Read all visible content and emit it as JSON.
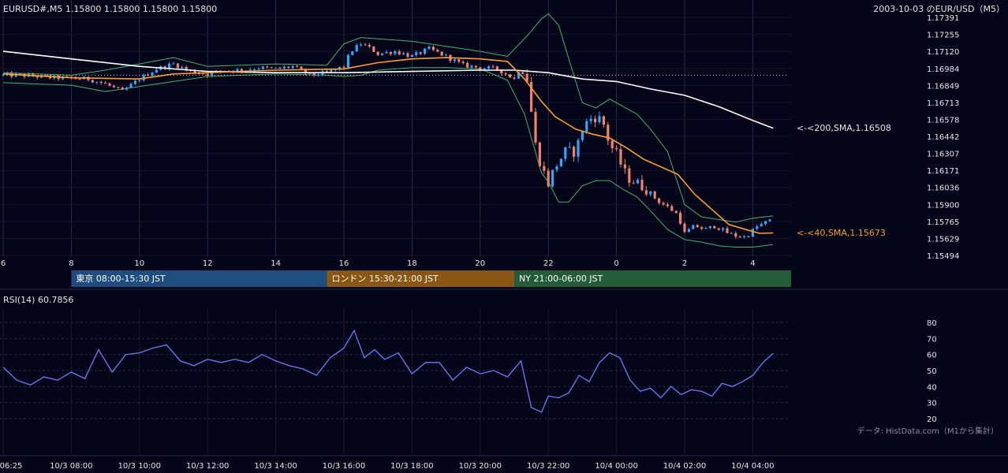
{
  "header": {
    "symbol_quote": "EURUSD#,M5 1.15800 1.15800 1.15800 1.15800",
    "right_title": "2003-10-03 のEUR/USD（M5）"
  },
  "colors": {
    "background": "#05051a",
    "grid": "#1c1c33",
    "up_candle": "#2ea8ff",
    "down_candle": "#f08070",
    "sma200": "#ffffff",
    "sma40": "#ffa020",
    "bollinger": "#3fb56a",
    "rsi": "#6a7cff",
    "tokyo": "#1f4e7e",
    "london": "#8a5614",
    "ny": "#245c3a"
  },
  "chart_data": [
    {
      "type": "candlestick",
      "title": "",
      "y_ticks": [
        "1.17391",
        "1.17255",
        "1.17120",
        "1.16984",
        "1.16849",
        "1.16713",
        "1.16578",
        "1.16442",
        "1.16307",
        "1.16171",
        "1.16036",
        "1.15900",
        "1.15765",
        "1.15629",
        "1.15494"
      ],
      "ylim": [
        1.15494,
        1.17391
      ],
      "x_ticks": [
        "6",
        "8",
        "10",
        "12",
        "14",
        "16",
        "18",
        "20",
        "22",
        "0",
        "2",
        "4"
      ],
      "price_path": {
        "time_hours": [
          6.5,
          7.5,
          8.5,
          9.0,
          9.5,
          10.0,
          10.5,
          11.0,
          11.5,
          12.0,
          12.5,
          13.0,
          13.5,
          14.0,
          14.5,
          15.0,
          15.5,
          16.0,
          16.2,
          16.5,
          16.8,
          17.0,
          17.5,
          18.0,
          18.5,
          19.0,
          19.5,
          20.0,
          20.5,
          21.0,
          21.2,
          21.4,
          21.6,
          21.8,
          22.0,
          22.2,
          22.5,
          22.8,
          23.0,
          23.2,
          23.4,
          23.6,
          23.8,
          24.0,
          24.3,
          24.6,
          24.9,
          25.2,
          25.5,
          25.8,
          26.0,
          26.3,
          26.6,
          26.9,
          27.2,
          27.5,
          27.8,
          28.1,
          28.4,
          28.6
        ],
        "close": [
          1.1693,
          1.1691,
          1.169,
          1.1686,
          1.168,
          1.169,
          1.1698,
          1.1702,
          1.1696,
          1.1694,
          1.1697,
          1.1697,
          1.1699,
          1.1698,
          1.17,
          1.1693,
          1.1695,
          1.17,
          1.1712,
          1.1718,
          1.1714,
          1.171,
          1.1712,
          1.1708,
          1.1714,
          1.1708,
          1.1701,
          1.1699,
          1.1698,
          1.169,
          1.1701,
          1.1688,
          1.164,
          1.162,
          1.1607,
          1.162,
          1.1632,
          1.1632,
          1.165,
          1.1658,
          1.166,
          1.1656,
          1.1638,
          1.163,
          1.1612,
          1.1607,
          1.1602,
          1.1593,
          1.1588,
          1.1582,
          1.1567,
          1.1573,
          1.157,
          1.1573,
          1.1568,
          1.1565,
          1.1564,
          1.1572,
          1.1576,
          1.1578
        ]
      },
      "indicators": {
        "sma200": {
          "label": "<-<200,SMA,1.16508",
          "time_hours": [
            6,
            8,
            10,
            12,
            14,
            16,
            18,
            20,
            21,
            22,
            23,
            24,
            25,
            26,
            27,
            28,
            28.6
          ],
          "values": [
            1.1712,
            1.1706,
            1.17,
            1.1696,
            1.1695,
            1.1695,
            1.1696,
            1.1697,
            1.1697,
            1.1695,
            1.169,
            1.1688,
            1.1682,
            1.1677,
            1.1668,
            1.1657,
            1.16508
          ]
        },
        "sma40": {
          "label": "<-<40,SMA,1.15673",
          "time_hours": [
            6,
            8,
            10,
            11,
            12,
            14,
            16,
            17,
            18,
            19,
            20,
            20.8,
            21.3,
            21.8,
            22.2,
            22.8,
            23.3,
            23.8,
            24.3,
            24.8,
            25.3,
            25.8,
            26.3,
            26.8,
            27.3,
            27.8,
            28.2,
            28.6
          ],
          "values": [
            1.1694,
            1.1691,
            1.169,
            1.1694,
            1.1695,
            1.1697,
            1.1698,
            1.1703,
            1.1706,
            1.1707,
            1.1706,
            1.1704,
            1.169,
            1.1672,
            1.166,
            1.165,
            1.1646,
            1.1643,
            1.1635,
            1.1626,
            1.162,
            1.1614,
            1.1598,
            1.1586,
            1.1574,
            1.157,
            1.1567,
            1.15673
          ]
        },
        "bollinger_upper": {
          "time_hours": [
            6,
            8,
            9,
            10,
            11,
            12,
            14,
            15.5,
            16,
            16.5,
            17,
            18,
            19,
            20,
            20.8,
            21.4,
            21.8,
            22.0,
            22.3,
            22.6,
            23.0,
            23.4,
            23.8,
            24.2,
            24.6,
            25.0,
            25.5,
            26.0,
            26.5,
            27.0,
            27.5,
            28.0,
            28.6
          ],
          "values": [
            1.1695,
            1.1693,
            1.1697,
            1.1702,
            1.1707,
            1.17,
            1.1702,
            1.1701,
            1.1718,
            1.1723,
            1.1722,
            1.172,
            1.1716,
            1.1712,
            1.1708,
            1.1725,
            1.1738,
            1.1742,
            1.1733,
            1.1706,
            1.1671,
            1.1667,
            1.1674,
            1.1668,
            1.1662,
            1.165,
            1.1632,
            1.159,
            1.158,
            1.1578,
            1.1576,
            1.1579,
            1.1581
          ]
        },
        "bollinger_lower": {
          "time_hours": [
            6,
            8,
            9,
            10,
            11,
            12,
            14,
            15.5,
            16,
            16.5,
            17,
            18,
            19,
            20,
            20.8,
            21.3,
            21.8,
            22.0,
            22.3,
            22.6,
            23.0,
            23.4,
            23.8,
            24.2,
            24.6,
            25.0,
            25.5,
            26.0,
            26.5,
            27.0,
            27.5,
            28.0,
            28.6
          ],
          "values": [
            1.1687,
            1.1685,
            1.168,
            1.1684,
            1.1688,
            1.1692,
            1.1694,
            1.1693,
            1.1692,
            1.1693,
            1.1697,
            1.1699,
            1.1699,
            1.1698,
            1.1689,
            1.1662,
            1.1615,
            1.1608,
            1.1592,
            1.1592,
            1.1605,
            1.1609,
            1.1609,
            1.1602,
            1.1596,
            1.1585,
            1.157,
            1.1562,
            1.156,
            1.1557,
            1.1556,
            1.1556,
            1.1558
          ]
        },
        "reference_level": 1.1693
      },
      "sessions": [
        {
          "label": "東京 08:00-15:30 JST",
          "start_hour": 8,
          "end_hour": 15.5
        },
        {
          "label": "ロンドン 15:30-21:00 JST",
          "start_hour": 15.5,
          "end_hour": 21
        },
        {
          "label": "NY 21:00-06:00 JST",
          "start_hour": 21,
          "end_hour": 30
        }
      ]
    },
    {
      "type": "line",
      "title": "RSI(14) 60.7856",
      "ylim": [
        20,
        80
      ],
      "y_ticks": [
        "80",
        "70",
        "60",
        "50",
        "40",
        "30",
        "20"
      ],
      "x_ticks": [
        "06:25",
        "10/3 08:00",
        "10/3 10:00",
        "10/3 12:00",
        "10/3 14:00",
        "10/3 16:00",
        "10/3 18:00",
        "10/3 20:00",
        "10/3 22:00",
        "10/4 00:00",
        "10/4 02:00",
        "10/4 04:00"
      ],
      "time_hours": [
        6.0,
        6.4,
        6.8,
        7.2,
        7.6,
        8.0,
        8.4,
        8.8,
        9.2,
        9.6,
        10.0,
        10.4,
        10.8,
        11.2,
        11.6,
        12.0,
        12.4,
        12.8,
        13.2,
        13.6,
        14.0,
        14.4,
        14.8,
        15.2,
        15.6,
        16.0,
        16.3,
        16.6,
        16.9,
        17.2,
        17.6,
        18.0,
        18.4,
        18.8,
        19.2,
        19.6,
        20.0,
        20.4,
        20.8,
        21.2,
        21.5,
        21.8,
        22.0,
        22.3,
        22.6,
        22.9,
        23.2,
        23.5,
        23.8,
        24.1,
        24.4,
        24.7,
        25.0,
        25.3,
        25.6,
        25.9,
        26.2,
        26.5,
        26.8,
        27.1,
        27.4,
        27.7,
        28.0,
        28.3,
        28.6
      ],
      "values": [
        52,
        44,
        41,
        46,
        44,
        49,
        45,
        63,
        49,
        60,
        61,
        64,
        66,
        56,
        53,
        57,
        55,
        57,
        55,
        60,
        56,
        53,
        51,
        47,
        58,
        64,
        75,
        58,
        63,
        57,
        61,
        48,
        55,
        55,
        44,
        52,
        48,
        50,
        46,
        56,
        27,
        24,
        34,
        33,
        36,
        47,
        43,
        55,
        61,
        58,
        44,
        37,
        39,
        33,
        40,
        35,
        38,
        37,
        34,
        42,
        40,
        43,
        47,
        55,
        60.79
      ],
      "series": [
        {
          "name": "RSI(14)",
          "last": 60.7856
        }
      ]
    }
  ],
  "footnote": "データ: HistData.com（M1から集計）"
}
